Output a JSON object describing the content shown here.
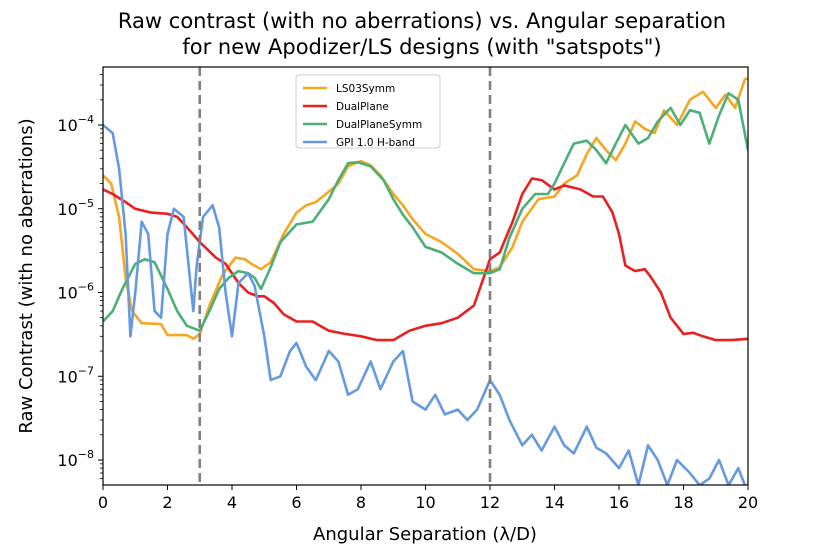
{
  "chart_data": {
    "type": "line",
    "title": "Raw contrast (with no aberrations) vs. Angular separation",
    "subtitle": "for new Apodizer/LS designs (with \"satspots\")",
    "xlabel": "Angular Separation (λ/D)",
    "ylabel": "Raw Contrast (with no aberrations)",
    "xlim": [
      0,
      20
    ],
    "ylim": [
      5e-09,
      0.0005
    ],
    "yscale": "log",
    "x_ticks": [
      "0",
      "2",
      "4",
      "6",
      "8",
      "10",
      "12",
      "14",
      "16",
      "18",
      "20"
    ],
    "y_ticks": [
      {
        "base": "10",
        "exp": "−8",
        "value": 1e-08
      },
      {
        "base": "10",
        "exp": "−7",
        "value": 1e-07
      },
      {
        "base": "10",
        "exp": "−6",
        "value": 1e-06
      },
      {
        "base": "10",
        "exp": "−5",
        "value": 1e-05
      },
      {
        "base": "10",
        "exp": "−4",
        "value": 0.0001
      }
    ],
    "vlines": [
      3,
      12
    ],
    "legend_position": "upper-center",
    "series": [
      {
        "name": "LS03Symm",
        "color": "#F5A623",
        "points": [
          [
            0,
            2.5e-05
          ],
          [
            0.25,
            2e-05
          ],
          [
            0.5,
            8e-06
          ],
          [
            0.7,
            1.5e-06
          ],
          [
            0.9,
            6e-07
          ],
          [
            1.2,
            4.3e-07
          ],
          [
            1.8,
            4.2e-07
          ],
          [
            2.0,
            3.1e-07
          ],
          [
            2.6,
            3.1e-07
          ],
          [
            2.8,
            2.8e-07
          ],
          [
            3.0,
            3.2e-07
          ],
          [
            3.3,
            7e-07
          ],
          [
            3.7,
            1.6e-06
          ],
          [
            4.1,
            2.6e-06
          ],
          [
            4.4,
            2.5e-06
          ],
          [
            4.6,
            2.2e-06
          ],
          [
            4.9,
            1.9e-06
          ],
          [
            5.2,
            2.3e-06
          ],
          [
            5.6,
            5e-06
          ],
          [
            6.0,
            9e-06
          ],
          [
            6.3,
            1.1e-05
          ],
          [
            6.6,
            1.2e-05
          ],
          [
            7.0,
            1.6e-05
          ],
          [
            7.3,
            2e-05
          ],
          [
            7.6,
            3.2e-05
          ],
          [
            7.9,
            3.6e-05
          ],
          [
            8.0,
            3.7e-05
          ],
          [
            8.3,
            3.3e-05
          ],
          [
            8.6,
            2.5e-05
          ],
          [
            9.0,
            1.5e-05
          ],
          [
            9.3,
            1.1e-05
          ],
          [
            9.6,
            7.5e-06
          ],
          [
            10.0,
            5e-06
          ],
          [
            10.5,
            4e-06
          ],
          [
            11.0,
            2.9e-06
          ],
          [
            11.5,
            1.9e-06
          ],
          [
            12.0,
            1.8e-06
          ],
          [
            12.3,
            2e-06
          ],
          [
            12.7,
            3.5e-06
          ],
          [
            13.0,
            7e-06
          ],
          [
            13.5,
            1.3e-05
          ],
          [
            14.0,
            1.4e-05
          ],
          [
            14.3,
            2e-05
          ],
          [
            14.7,
            2.5e-05
          ],
          [
            15.0,
            4.5e-05
          ],
          [
            15.3,
            7e-05
          ],
          [
            15.6,
            5e-05
          ],
          [
            15.9,
            3.8e-05
          ],
          [
            16.2,
            6e-05
          ],
          [
            16.5,
            0.00011
          ],
          [
            16.8,
            9e-05
          ],
          [
            17.1,
            8e-05
          ],
          [
            17.4,
            0.00015
          ],
          [
            17.8,
            0.0001
          ],
          [
            18.2,
            0.0002
          ],
          [
            18.6,
            0.00025
          ],
          [
            19.0,
            0.00016
          ],
          [
            19.3,
            0.00023
          ],
          [
            19.6,
            0.00016
          ],
          [
            19.9,
            0.00035
          ],
          [
            20.0,
            0.00036
          ]
        ]
      },
      {
        "name": "DualPlane",
        "color": "#E82020",
        "points": [
          [
            0,
            1.7e-05
          ],
          [
            0.3,
            1.5e-05
          ],
          [
            0.7,
            1.2e-05
          ],
          [
            1.0,
            1e-05
          ],
          [
            1.5,
            9e-06
          ],
          [
            2.0,
            8.7e-06
          ],
          [
            2.3,
            8e-06
          ],
          [
            2.6,
            6e-06
          ],
          [
            3.0,
            4e-06
          ],
          [
            3.5,
            2.6e-06
          ],
          [
            3.8,
            2.2e-06
          ],
          [
            4.2,
            1.3e-06
          ],
          [
            4.5,
            1e-06
          ],
          [
            4.8,
            9e-07
          ],
          [
            5.0,
            9e-07
          ],
          [
            5.3,
            7.5e-07
          ],
          [
            5.6,
            5.5e-07
          ],
          [
            6.0,
            4.5e-07
          ],
          [
            6.5,
            4.5e-07
          ],
          [
            7.0,
            3.5e-07
          ],
          [
            7.5,
            3.2e-07
          ],
          [
            8.0,
            3e-07
          ],
          [
            8.5,
            2.7e-07
          ],
          [
            9.0,
            2.7e-07
          ],
          [
            9.5,
            3.5e-07
          ],
          [
            10.0,
            4e-07
          ],
          [
            10.5,
            4.3e-07
          ],
          [
            11.0,
            5e-07
          ],
          [
            11.5,
            7e-07
          ],
          [
            11.8,
            1.5e-06
          ],
          [
            12.0,
            2.5e-06
          ],
          [
            12.3,
            3e-06
          ],
          [
            12.7,
            7e-06
          ],
          [
            13.0,
            1.5e-05
          ],
          [
            13.3,
            2.3e-05
          ],
          [
            13.6,
            2.2e-05
          ],
          [
            14.0,
            1.7e-05
          ],
          [
            14.3,
            1.9e-05
          ],
          [
            14.8,
            1.7e-05
          ],
          [
            15.2,
            1.4e-05
          ],
          [
            15.5,
            1.4e-05
          ],
          [
            15.8,
            9e-06
          ],
          [
            16.0,
            5e-06
          ],
          [
            16.2,
            2.1e-06
          ],
          [
            16.5,
            1.8e-06
          ],
          [
            16.8,
            1.9e-06
          ],
          [
            17.0,
            1.5e-06
          ],
          [
            17.3,
            1e-06
          ],
          [
            17.6,
            5e-07
          ],
          [
            18.0,
            3.2e-07
          ],
          [
            18.3,
            3.3e-07
          ],
          [
            18.6,
            3e-07
          ],
          [
            19.0,
            2.7e-07
          ],
          [
            19.5,
            2.7e-07
          ],
          [
            20.0,
            2.8e-07
          ]
        ]
      },
      {
        "name": "DualPlaneSymm",
        "color": "#4CAF78",
        "points": [
          [
            0,
            4.5e-07
          ],
          [
            0.3,
            6e-07
          ],
          [
            0.6,
            1.1e-06
          ],
          [
            1.0,
            2.2e-06
          ],
          [
            1.3,
            2.5e-06
          ],
          [
            1.6,
            2.3e-06
          ],
          [
            2.0,
            1.1e-06
          ],
          [
            2.3,
            6e-07
          ],
          [
            2.6,
            4e-07
          ],
          [
            3.0,
            3.5e-07
          ],
          [
            3.3,
            6e-07
          ],
          [
            3.6,
            1.1e-06
          ],
          [
            3.9,
            1.5e-06
          ],
          [
            4.2,
            1.8e-06
          ],
          [
            4.5,
            1.7e-06
          ],
          [
            4.7,
            1.5e-06
          ],
          [
            4.9,
            1.1e-06
          ],
          [
            5.2,
            2e-06
          ],
          [
            5.5,
            4e-06
          ],
          [
            6.0,
            6.5e-06
          ],
          [
            6.5,
            7e-06
          ],
          [
            7.0,
            1.3e-05
          ],
          [
            7.3,
            2.2e-05
          ],
          [
            7.6,
            3.5e-05
          ],
          [
            7.9,
            3.6e-05
          ],
          [
            8.0,
            3.5e-05
          ],
          [
            8.3,
            3.2e-05
          ],
          [
            8.7,
            2.2e-05
          ],
          [
            9.0,
            1.3e-05
          ],
          [
            9.3,
            8.5e-06
          ],
          [
            9.6,
            6e-06
          ],
          [
            10.0,
            3.5e-06
          ],
          [
            10.5,
            3e-06
          ],
          [
            11.0,
            2.2e-06
          ],
          [
            11.5,
            1.7e-06
          ],
          [
            12.0,
            1.7e-06
          ],
          [
            12.3,
            1.9e-06
          ],
          [
            12.6,
            4.5e-06
          ],
          [
            13.0,
            1e-05
          ],
          [
            13.4,
            1.5e-05
          ],
          [
            13.8,
            1.5e-05
          ],
          [
            14.0,
            2e-05
          ],
          [
            14.3,
            3.5e-05
          ],
          [
            14.6,
            6e-05
          ],
          [
            15.0,
            6.5e-05
          ],
          [
            15.3,
            5e-05
          ],
          [
            15.6,
            3.5e-05
          ],
          [
            15.9,
            6e-05
          ],
          [
            16.2,
            0.0001
          ],
          [
            16.6,
            6e-05
          ],
          [
            16.9,
            7e-05
          ],
          [
            17.2,
            0.00011
          ],
          [
            17.6,
            0.00016
          ],
          [
            17.9,
            0.0001
          ],
          [
            18.2,
            0.00015
          ],
          [
            18.5,
            0.00014
          ],
          [
            18.8,
            6e-05
          ],
          [
            19.1,
            0.00013
          ],
          [
            19.4,
            0.00024
          ],
          [
            19.7,
            0.0002
          ],
          [
            20.0,
            5e-05
          ]
        ]
      },
      {
        "name": "GPI 1.0 H-band",
        "color": "#6699E0",
        "points": [
          [
            0,
            0.0001
          ],
          [
            0.3,
            8e-05
          ],
          [
            0.5,
            3e-05
          ],
          [
            0.7,
            5e-06
          ],
          [
            0.85,
            3e-07
          ],
          [
            1.0,
            1e-06
          ],
          [
            1.2,
            7e-06
          ],
          [
            1.4,
            5e-06
          ],
          [
            1.6,
            6e-07
          ],
          [
            1.8,
            5e-07
          ],
          [
            2.0,
            5e-06
          ],
          [
            2.2,
            1e-05
          ],
          [
            2.5,
            8e-06
          ],
          [
            2.8,
            6e-07
          ],
          [
            2.9,
            2e-06
          ],
          [
            3.1,
            8e-06
          ],
          [
            3.4,
            1.1e-05
          ],
          [
            3.6,
            6e-06
          ],
          [
            3.8,
            1e-06
          ],
          [
            4.0,
            3e-07
          ],
          [
            4.2,
            1.3e-06
          ],
          [
            4.5,
            1.7e-06
          ],
          [
            4.7,
            1.2e-06
          ],
          [
            5.0,
            3e-07
          ],
          [
            5.2,
            9e-08
          ],
          [
            5.5,
            1e-07
          ],
          [
            5.8,
            2e-07
          ],
          [
            6.0,
            2.5e-07
          ],
          [
            6.3,
            1.3e-07
          ],
          [
            6.6,
            9e-08
          ],
          [
            7.0,
            2e-07
          ],
          [
            7.3,
            1.5e-07
          ],
          [
            7.6,
            6e-08
          ],
          [
            7.9,
            7e-08
          ],
          [
            8.3,
            1.5e-07
          ],
          [
            8.6,
            7e-08
          ],
          [
            9.0,
            1.5e-07
          ],
          [
            9.3,
            2e-07
          ],
          [
            9.6,
            5e-08
          ],
          [
            10.0,
            4e-08
          ],
          [
            10.3,
            6e-08
          ],
          [
            10.6,
            3.5e-08
          ],
          [
            11.0,
            4e-08
          ],
          [
            11.3,
            3e-08
          ],
          [
            11.6,
            4e-08
          ],
          [
            12.0,
            9e-08
          ],
          [
            12.3,
            6e-08
          ],
          [
            12.6,
            3e-08
          ],
          [
            13.0,
            1.5e-08
          ],
          [
            13.3,
            2e-08
          ],
          [
            13.6,
            1.3e-08
          ],
          [
            14.0,
            2.5e-08
          ],
          [
            14.3,
            1.5e-08
          ],
          [
            14.6,
            1.2e-08
          ],
          [
            15.0,
            2.5e-08
          ],
          [
            15.3,
            1.4e-08
          ],
          [
            15.6,
            1.2e-08
          ],
          [
            16.0,
            8e-09
          ],
          [
            16.3,
            1.3e-08
          ],
          [
            16.6,
            5e-09
          ],
          [
            16.9,
            1.5e-08
          ],
          [
            17.2,
            1e-08
          ],
          [
            17.5,
            5e-09
          ],
          [
            17.8,
            1e-08
          ],
          [
            18.2,
            7e-09
          ],
          [
            18.5,
            5e-09
          ],
          [
            18.8,
            6e-09
          ],
          [
            19.1,
            1e-08
          ],
          [
            19.4,
            5e-09
          ],
          [
            19.7,
            8e-09
          ],
          [
            20.0,
            4e-09
          ]
        ]
      }
    ]
  }
}
